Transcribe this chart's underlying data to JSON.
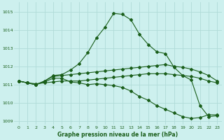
{
  "xlabel": "Graphe pression niveau de la mer (hPa)",
  "xlim": [
    -0.5,
    23.5
  ],
  "ylim": [
    1008.8,
    1015.5
  ],
  "yticks": [
    1009,
    1010,
    1011,
    1012,
    1013,
    1014,
    1015
  ],
  "xticks": [
    0,
    1,
    2,
    3,
    4,
    5,
    6,
    7,
    8,
    9,
    10,
    11,
    12,
    13,
    14,
    15,
    16,
    17,
    18,
    19,
    20,
    21,
    22,
    23
  ],
  "bg_color": "#cdf0ee",
  "grid_color": "#b0dbd8",
  "line_color": "#1a5e1a",
  "line1_x": [
    0,
    1,
    2,
    3,
    4,
    5,
    6,
    7,
    8,
    9,
    10,
    11,
    12,
    13,
    14,
    15,
    16,
    17,
    18,
    19,
    20,
    21,
    22,
    23
  ],
  "line1_y": [
    1011.2,
    1011.1,
    1011.0,
    1011.15,
    1011.35,
    1011.35,
    1011.15,
    1011.1,
    1011.0,
    1011.05,
    1011.0,
    1010.95,
    1010.85,
    1010.65,
    1010.35,
    1010.15,
    1009.85,
    1009.65,
    1009.45,
    1009.25,
    1009.15,
    1009.2,
    1009.35,
    1009.35
  ],
  "line2_x": [
    0,
    1,
    2,
    3,
    4,
    5,
    6,
    7,
    8,
    9,
    10,
    11,
    12,
    13,
    14,
    15,
    16,
    17,
    18,
    19,
    20,
    21,
    22,
    23
  ],
  "line2_y": [
    1011.2,
    1011.1,
    1011.0,
    1011.2,
    1011.5,
    1011.55,
    1011.8,
    1012.15,
    1012.75,
    1013.55,
    1014.15,
    1014.9,
    1014.85,
    1014.55,
    1013.75,
    1013.2,
    1012.8,
    1012.7,
    1011.95,
    1011.5,
    1011.25,
    1009.85,
    1009.25,
    1009.3
  ],
  "line3_x": [
    0,
    1,
    2,
    3,
    4,
    5,
    6,
    7,
    8,
    9,
    10,
    11,
    12,
    13,
    14,
    15,
    16,
    17,
    18,
    19,
    20,
    21,
    22,
    23
  ],
  "line3_y": [
    1011.2,
    1011.1,
    1011.0,
    1011.2,
    1011.45,
    1011.5,
    1011.55,
    1011.6,
    1011.65,
    1011.7,
    1011.75,
    1011.8,
    1011.85,
    1011.9,
    1011.95,
    1012.0,
    1012.05,
    1012.1,
    1012.0,
    1011.95,
    1011.85,
    1011.7,
    1011.5,
    1011.2
  ],
  "line4_x": [
    0,
    1,
    2,
    3,
    4,
    5,
    6,
    7,
    8,
    9,
    10,
    11,
    12,
    13,
    14,
    15,
    16,
    17,
    18,
    19,
    20,
    21,
    22,
    23
  ],
  "line4_y": [
    1011.2,
    1011.1,
    1011.05,
    1011.1,
    1011.15,
    1011.2,
    1011.2,
    1011.2,
    1011.25,
    1011.3,
    1011.35,
    1011.4,
    1011.45,
    1011.5,
    1011.55,
    1011.6,
    1011.6,
    1011.6,
    1011.55,
    1011.5,
    1011.45,
    1011.35,
    1011.2,
    1011.1
  ]
}
